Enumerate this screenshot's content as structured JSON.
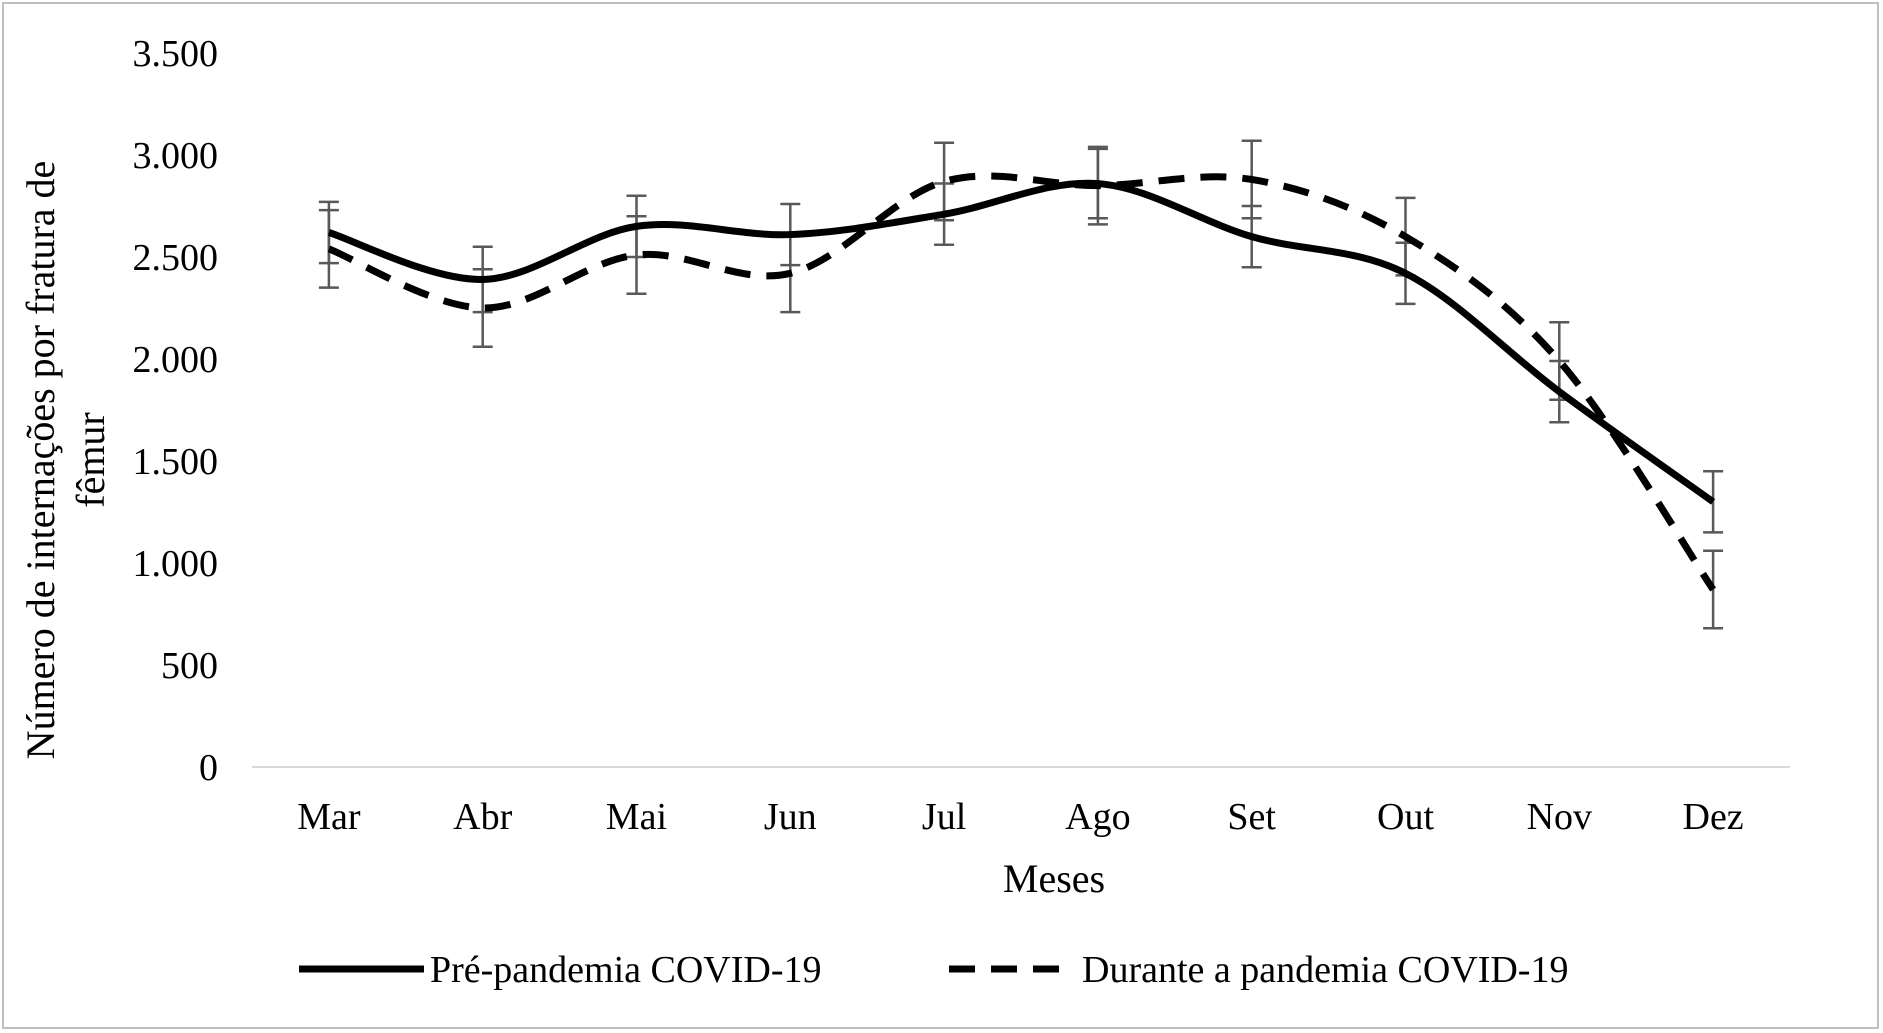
{
  "chart_data": {
    "type": "line",
    "categories": [
      "Mar",
      "Abr",
      "Mai",
      "Jun",
      "Jul",
      "Ago",
      "Set",
      "Out",
      "Nov",
      "Dez"
    ],
    "series": [
      {
        "name": "Pré-pandemia COVID-19",
        "style": "solid",
        "values": [
          2620,
          2390,
          2650,
          2610,
          2710,
          2860,
          2600,
          2420,
          1840,
          1300
        ],
        "error": [
          150,
          160,
          150,
          150,
          150,
          170,
          150,
          150,
          150,
          150
        ]
      },
      {
        "name": "Durante a pandemia COVID-19",
        "style": "dashed",
        "values": [
          2540,
          2250,
          2510,
          2420,
          2870,
          2850,
          2880,
          2600,
          1990,
          870
        ],
        "error": [
          190,
          190,
          190,
          190,
          190,
          190,
          190,
          190,
          190,
          190
        ]
      }
    ],
    "title": "",
    "xlabel": "Meses",
    "ylabel": "Número de internações por fratura de fêmur",
    "ylabel_lines": [
      "Número de internações por fratura de",
      "fêmur"
    ],
    "ylim": [
      0,
      3500
    ],
    "yticks": [
      0,
      500,
      1000,
      1500,
      2000,
      2500,
      3000,
      3500
    ],
    "ytick_labels": [
      "0",
      "500",
      "1.000",
      "1.500",
      "2.000",
      "2.500",
      "3.000",
      "3.500"
    ],
    "grid": false,
    "legend_position": "bottom",
    "colors": {
      "line": "#000000",
      "error_bar": "#595959",
      "axis": "#d9d9d9",
      "border": "#bfbfbf"
    }
  }
}
